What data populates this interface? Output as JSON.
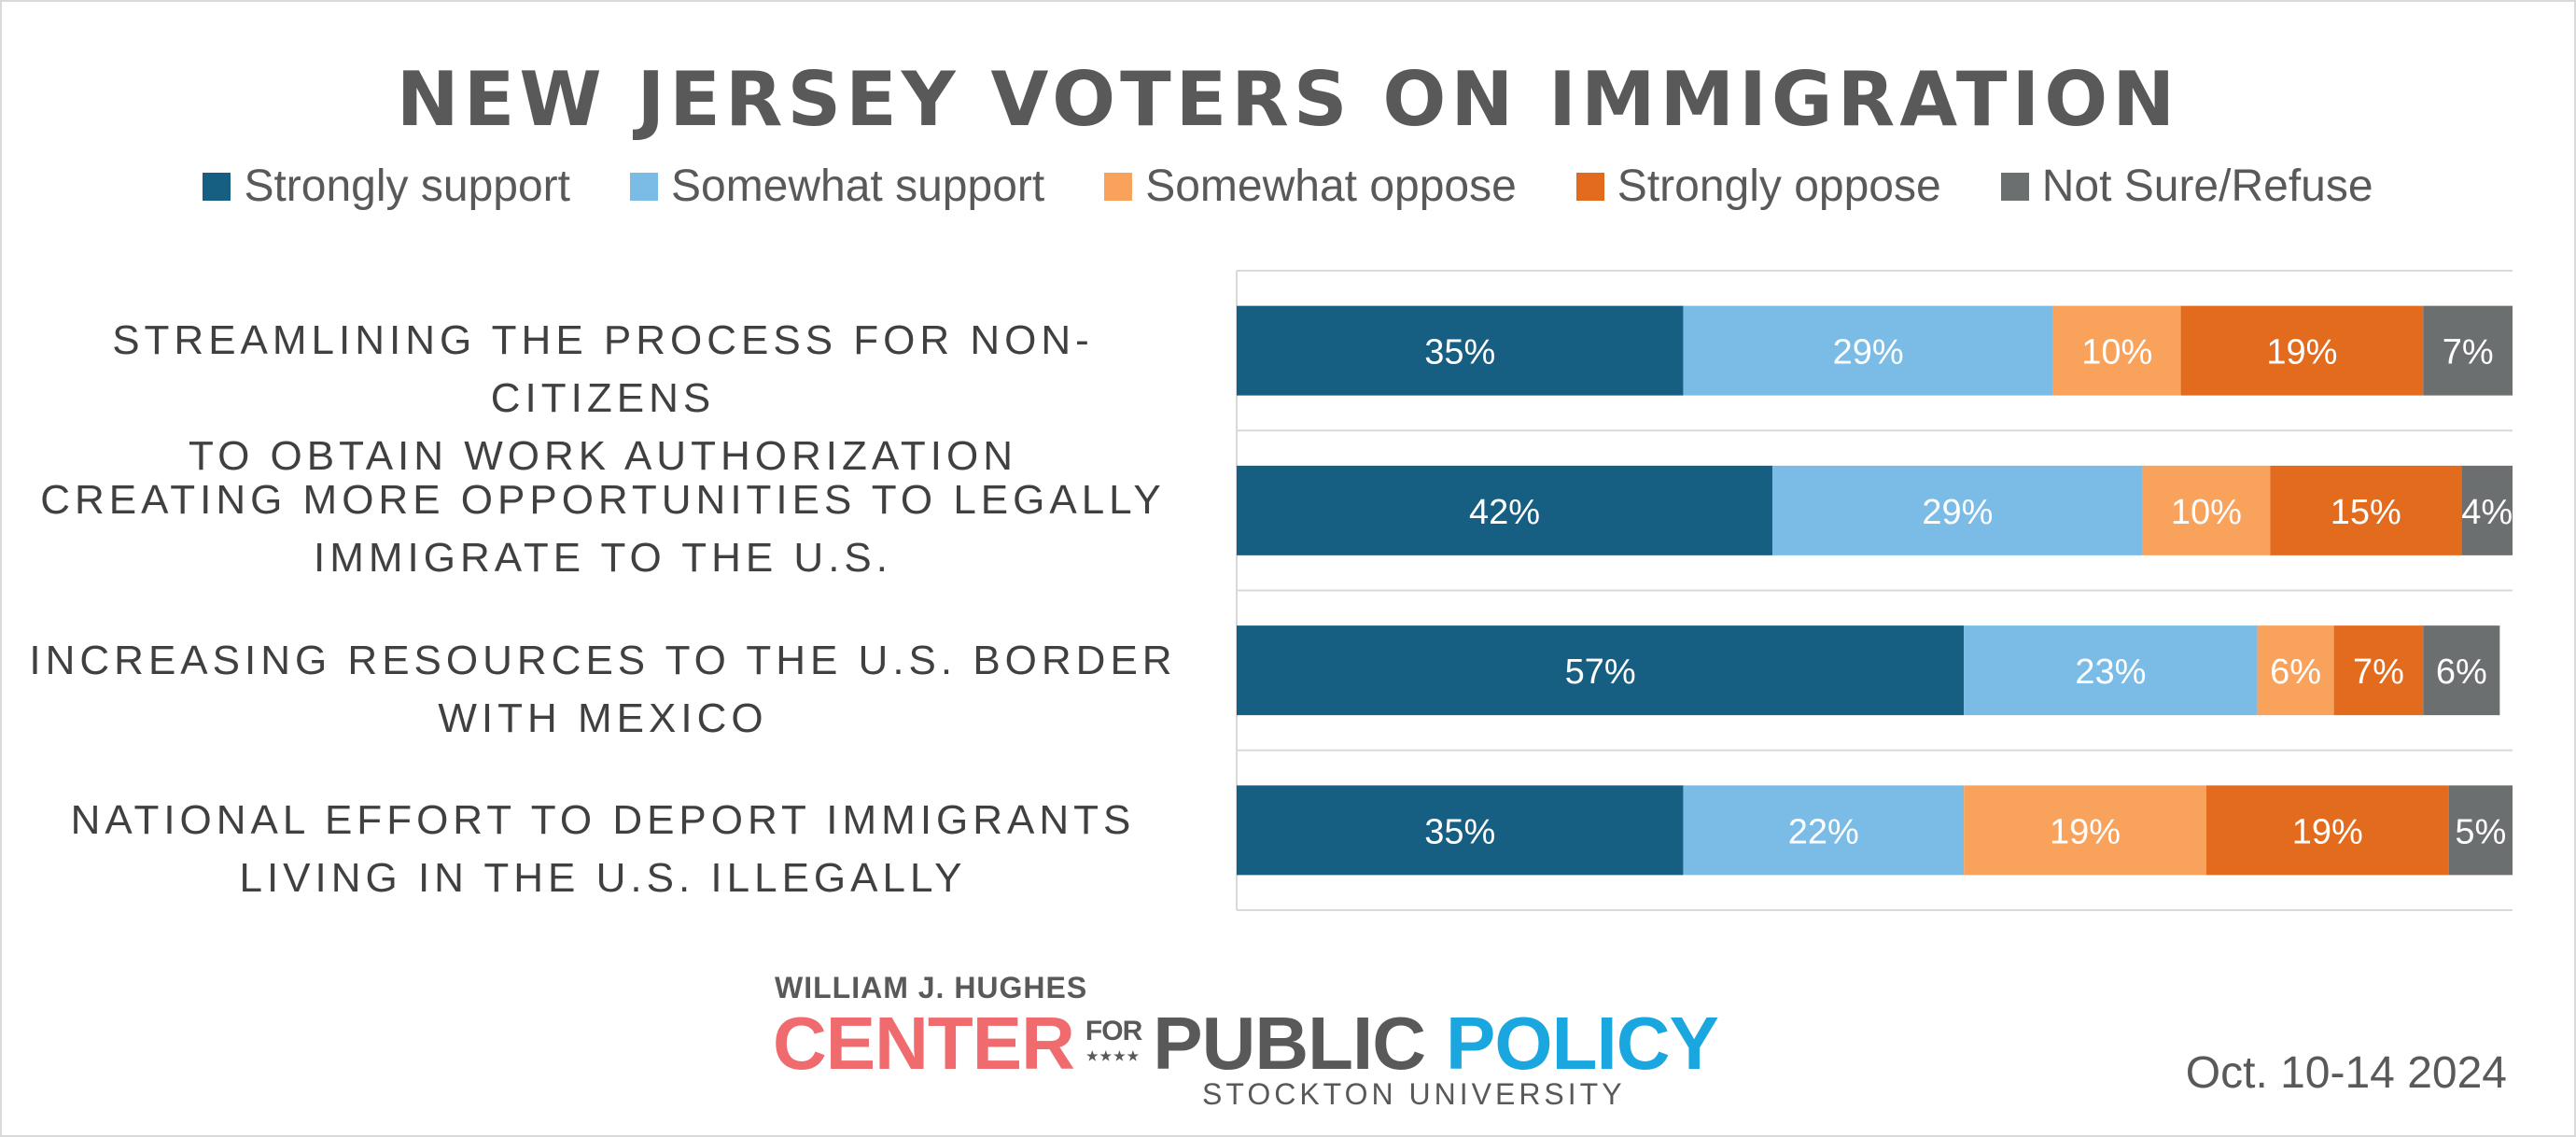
{
  "colors": {
    "strongly_support": "#175f82",
    "somewhat_support": "#7abce6",
    "somewhat_oppose": "#f8a25b",
    "strongly_oppose": "#e36b1e",
    "not_sure": "#6c6f70"
  },
  "chart_data": {
    "type": "bar",
    "orientation": "horizontal",
    "stacked": true,
    "title": "NEW JERSEY VOTERS ON IMMIGRATION",
    "categories": [
      [
        "STREAMLINING THE PROCESS FOR NON-CITIZENS",
        "TO OBTAIN WORK AUTHORIZATION"
      ],
      [
        "CREATING MORE OPPORTUNITIES TO LEGALLY",
        "IMMIGRATE TO THE U.S."
      ],
      [
        "INCREASING RESOURCES TO THE U.S. BORDER",
        "WITH MEXICO"
      ],
      [
        "NATIONAL EFFORT TO DEPORT IMMIGRANTS",
        "LIVING IN THE U.S. ILLEGALLY"
      ]
    ],
    "series": [
      {
        "name": "Strongly support",
        "color": "#175f82",
        "values": [
          35,
          42,
          57,
          35
        ],
        "labels": [
          "35%",
          "42%",
          "57%",
          "35%"
        ]
      },
      {
        "name": "Somewhat support",
        "color": "#7abce6",
        "values": [
          29,
          29,
          23,
          22
        ],
        "labels": [
          "29%",
          "29%",
          "23%",
          "22%"
        ]
      },
      {
        "name": "Somewhat oppose",
        "color": "#f8a25b",
        "values": [
          10,
          10,
          6,
          19
        ],
        "labels": [
          "10%",
          "10%",
          "6%",
          "19%"
        ]
      },
      {
        "name": "Strongly oppose",
        "color": "#e36b1e",
        "values": [
          19,
          15,
          7,
          19
        ],
        "labels": [
          "19%",
          "15%",
          "7%",
          "19%"
        ]
      },
      {
        "name": "Not Sure/Refuse",
        "color": "#6c6f70",
        "values": [
          7,
          4,
          6,
          5
        ],
        "labels": [
          "7%",
          "4%",
          "6%",
          "5%"
        ]
      }
    ],
    "xlim": [
      0,
      100
    ],
    "legend": "top-center",
    "grid": true,
    "data_labels": true
  },
  "footer": {
    "logo_line1": "WILLIAM J. HUGHES",
    "logo_center": "CENTER",
    "logo_for": "FOR",
    "logo_stars": "★★★★",
    "logo_public": "PUBLIC",
    "logo_policy": "POLICY",
    "logo_university": "STOCKTON UNIVERSITY",
    "date": "Oct. 10-14 2024"
  }
}
